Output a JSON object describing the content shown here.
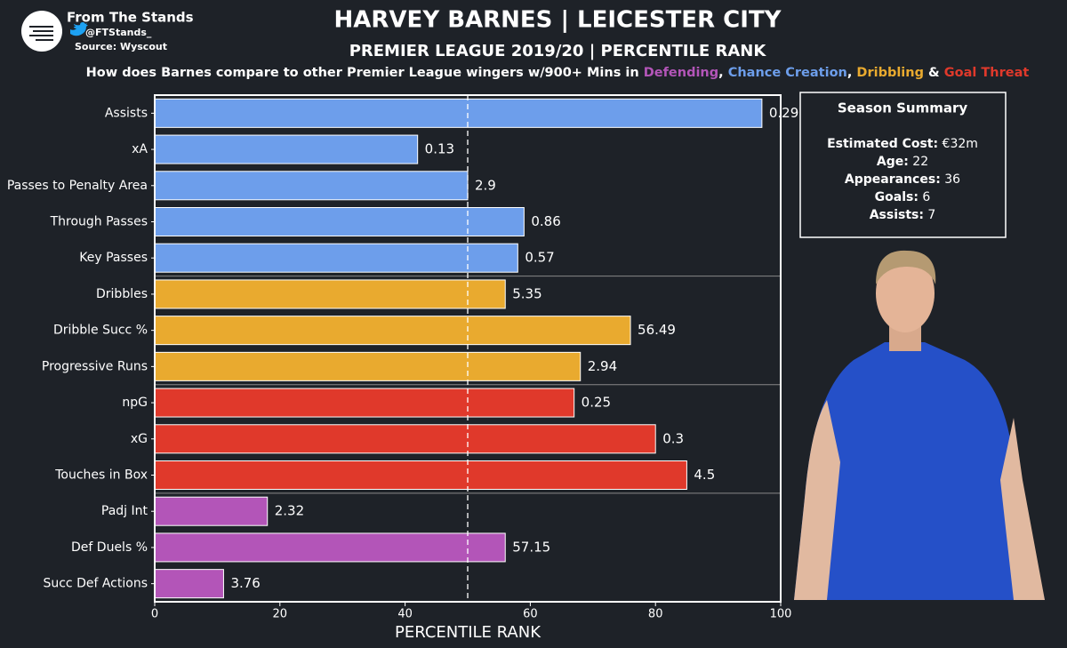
{
  "header": {
    "brand": "From The Stands",
    "handle": "@FTStands_",
    "source": "Source: Wyscout"
  },
  "chart_data": {
    "type": "barh",
    "title": "HARVEY BARNES | LEICESTER CITY",
    "subtitle": "PREMIER LEAGUE 2019/20 | PERCENTILE RANK",
    "subtitle_parts": [
      {
        "text": "How does Barnes compare to other Premier League wingers w/900+ Mins in ",
        "color": "#ffffff"
      },
      {
        "text": "Defending",
        "color": "#b355b8"
      },
      {
        "text": ", ",
        "color": "#ffffff"
      },
      {
        "text": "Chance Creation",
        "color": "#6d9eeb"
      },
      {
        "text": ", ",
        "color": "#ffffff"
      },
      {
        "text": "Dribbling",
        "color": "#e9aa2f"
      },
      {
        "text": " & ",
        "color": "#ffffff"
      },
      {
        "text": "Goal Threat",
        "color": "#e0392b"
      }
    ],
    "x_label": "PERCENTILE RANK",
    "categories": [
      "Assists",
      "xA",
      "Passes to Penalty Area",
      "Through Passes",
      "Key Passes",
      "Dribbles",
      "Dribble Succ %",
      "Progressive Runs",
      "npG",
      "xG",
      "Touches in Box",
      "Padj Int",
      "Def Duels %",
      "Succ Def Actions"
    ],
    "values": [
      97,
      42,
      50,
      59,
      58,
      56,
      76,
      68,
      67,
      80,
      85,
      18,
      56,
      11
    ],
    "raw_values": [
      0.29,
      0.13,
      2.9,
      0.86,
      0.57,
      5.35,
      56.49,
      2.94,
      0.25,
      0.3,
      4.5,
      2.32,
      57.15,
      3.76
    ],
    "bar_colors": [
      "#6d9eeb",
      "#6d9eeb",
      "#6d9eeb",
      "#6d9eeb",
      "#6d9eeb",
      "#e9aa2f",
      "#e9aa2f",
      "#e9aa2f",
      "#e0392b",
      "#e0392b",
      "#e0392b",
      "#b355b8",
      "#b355b8",
      "#b355b8"
    ],
    "xlim": [
      0,
      100
    ],
    "xticks": [
      0,
      20,
      40,
      60,
      80,
      100
    ],
    "reference_line": 50
  },
  "summary": {
    "title": "Season Summary",
    "items": [
      {
        "label": "Estimated Cost:",
        "value": "€32m"
      },
      {
        "label": "Age:",
        "value": "22"
      },
      {
        "label": "Appearances:",
        "value": "36"
      },
      {
        "label": "Goals:",
        "value": "6"
      },
      {
        "label": "Assists:",
        "value": "7"
      }
    ]
  }
}
